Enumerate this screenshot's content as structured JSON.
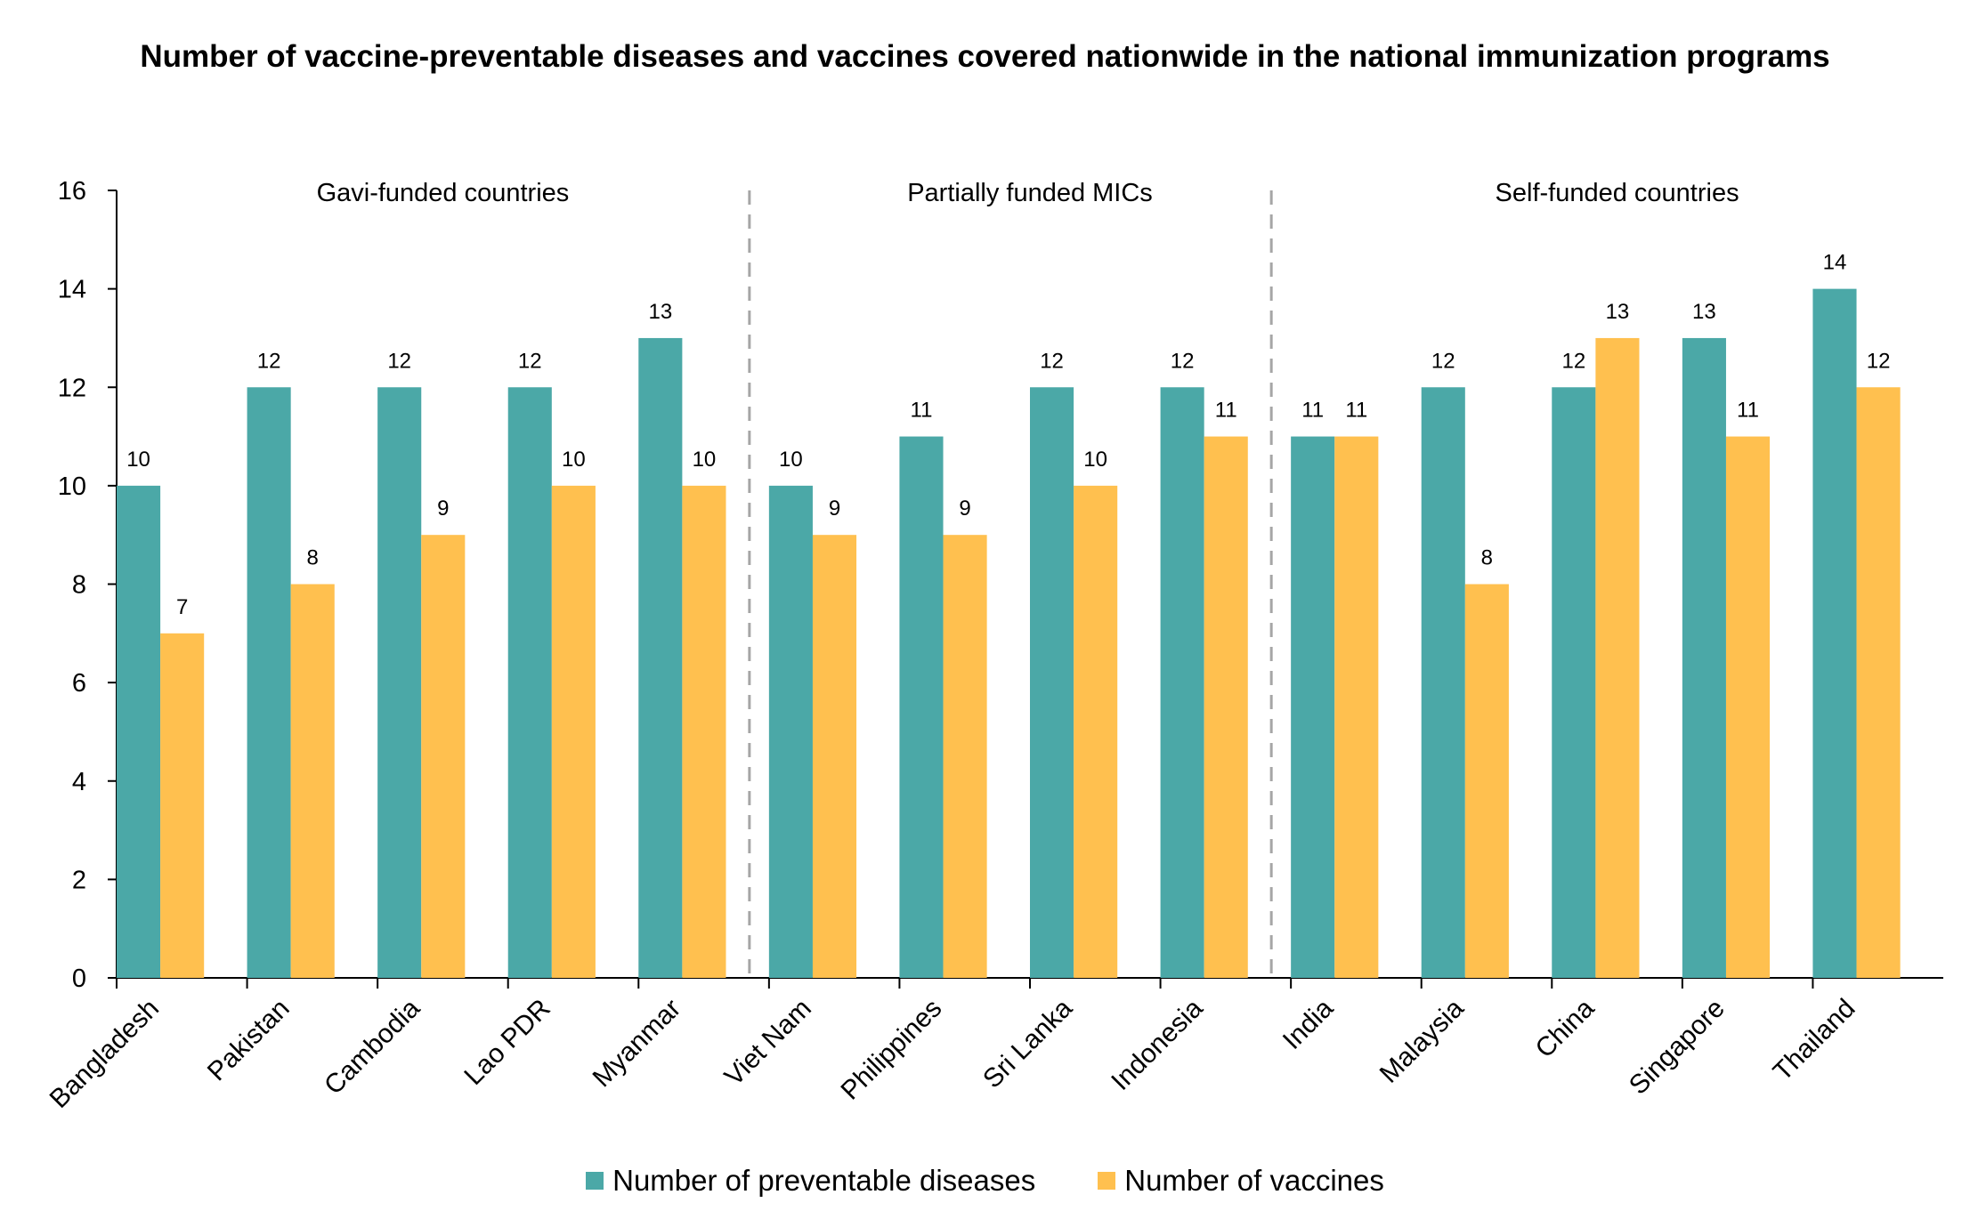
{
  "chart_data": {
    "type": "bar",
    "title": "Number of vaccine-preventable diseases and vaccines covered nationwide in the national immunization programs",
    "categories": [
      "Bangladesh",
      "Pakistan",
      "Cambodia",
      "Lao PDR",
      "Myanmar",
      "Viet Nam",
      "Philippines",
      "Sri Lanka",
      "Indonesia",
      "India",
      "Malaysia",
      "China",
      "Singapore",
      "Thailand"
    ],
    "series": [
      {
        "name": "Number of preventable diseases",
        "color": "#4BA8A7",
        "values": [
          10,
          12,
          12,
          12,
          13,
          10,
          11,
          12,
          12,
          11,
          12,
          12,
          13,
          14
        ]
      },
      {
        "name": "Number of vaccines",
        "color": "#FFC04F",
        "values": [
          7,
          8,
          9,
          10,
          10,
          9,
          9,
          10,
          11,
          11,
          8,
          13,
          11,
          12
        ]
      }
    ],
    "ylim": [
      0,
      16
    ],
    "yticks": [
      0,
      2,
      4,
      6,
      8,
      10,
      12,
      14,
      16
    ],
    "groups": [
      {
        "label": "Gavi-funded countries",
        "count": 5
      },
      {
        "label": "Partially funded MICs",
        "count": 4
      },
      {
        "label": "Self-funded countries",
        "count": 5
      }
    ],
    "grid": false,
    "legend_position": "bottom"
  }
}
